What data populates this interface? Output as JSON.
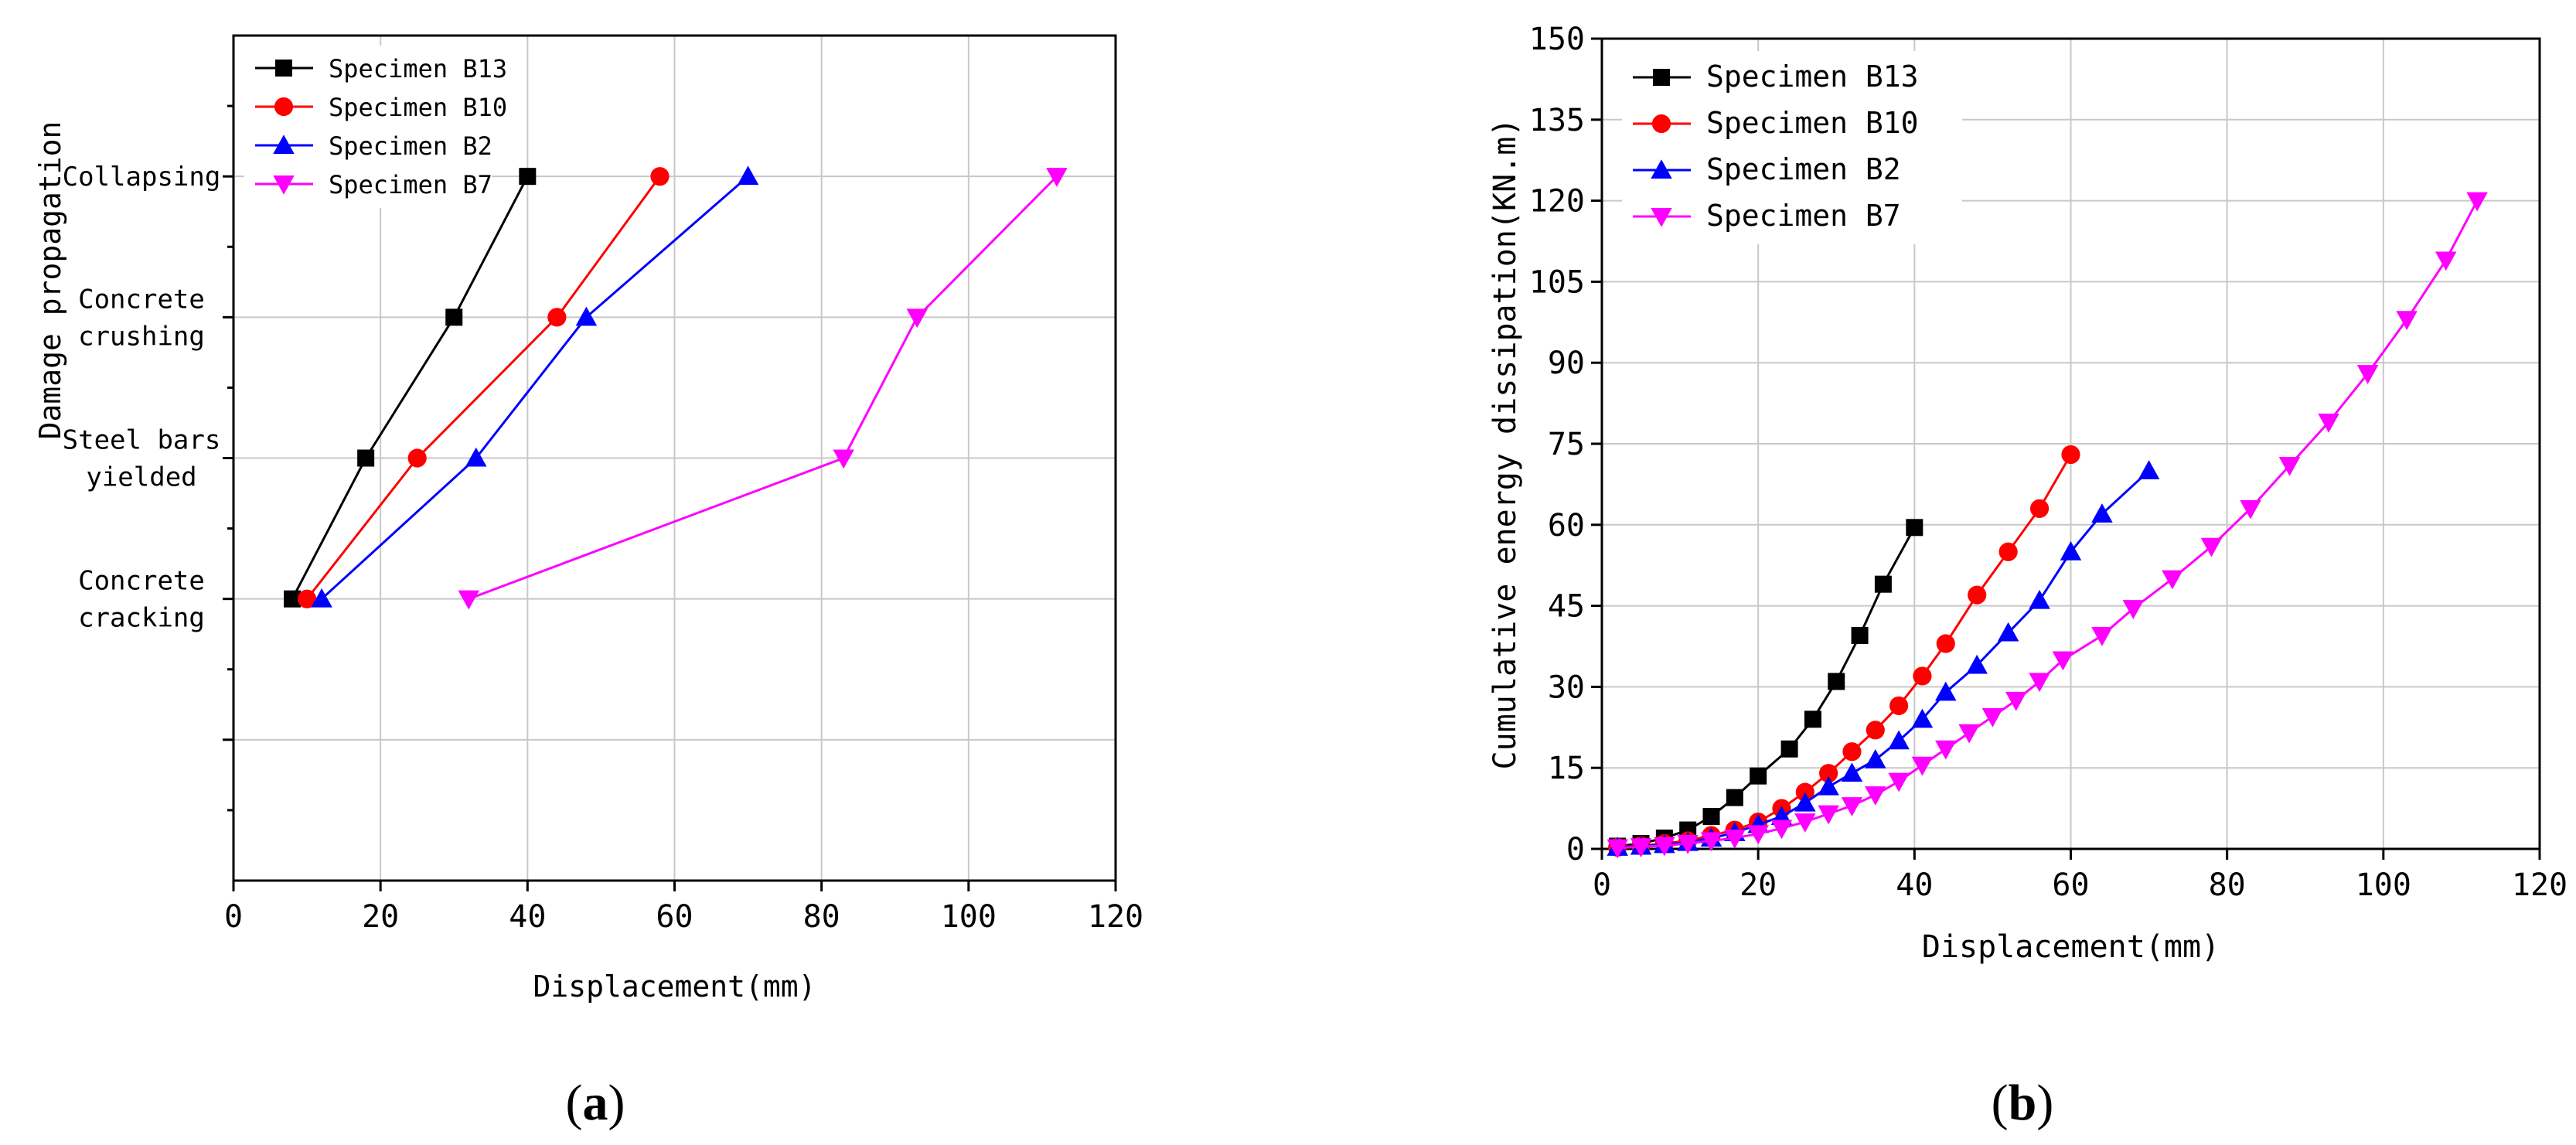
{
  "chart_data": [
    {
      "id": "a",
      "type": "line",
      "panel_label": "(a)",
      "panel_letter": "a",
      "title": "",
      "xlabel": "Displacement(mm)",
      "ylabel": "Damage propagation",
      "xlim": [
        0,
        120
      ],
      "xticks": [
        0,
        20,
        40,
        60,
        80,
        100,
        120
      ],
      "ylim": [
        0,
        6
      ],
      "yticks_major": [
        1,
        2,
        3,
        4,
        5
      ],
      "yticks_minor": [
        0.5,
        1.5,
        2.5,
        3.5,
        4.5,
        5.5
      ],
      "categories": [
        {
          "y": 2,
          "lines": [
            "Concrete",
            "cracking"
          ]
        },
        {
          "y": 3,
          "lines": [
            "Steel bars",
            "yielded"
          ]
        },
        {
          "y": 4,
          "lines": [
            "Concrete",
            "crushing"
          ]
        },
        {
          "y": 5,
          "lines": [
            "Collapsing"
          ]
        }
      ],
      "grid": true,
      "legend_position": "top-left",
      "series": [
        {
          "name": "Specimen B13",
          "color": "#000000",
          "marker": "square",
          "x": [
            8,
            18,
            30,
            40
          ],
          "y": [
            2,
            3,
            4,
            5
          ]
        },
        {
          "name": "Specimen B10",
          "color": "#ff0000",
          "marker": "circle",
          "x": [
            10,
            25,
            44,
            58
          ],
          "y": [
            2,
            3,
            4,
            5
          ]
        },
        {
          "name": "Specimen B2",
          "color": "#0000ff",
          "marker": "triangle-up",
          "x": [
            12,
            33,
            48,
            70
          ],
          "y": [
            2,
            3,
            4,
            5
          ]
        },
        {
          "name": "Specimen B7",
          "color": "#ff00ff",
          "marker": "triangle-down",
          "x": [
            32,
            83,
            93,
            112
          ],
          "y": [
            2,
            3,
            4,
            5
          ]
        }
      ]
    },
    {
      "id": "b",
      "type": "line",
      "panel_label": "(b)",
      "panel_letter": "b",
      "title": "",
      "xlabel": "Displacement(mm)",
      "ylabel": "Cumulative energy dissipation(KN.m)",
      "xlim": [
        0,
        120
      ],
      "xticks": [
        0,
        20,
        40,
        60,
        80,
        100,
        120
      ],
      "ylim": [
        0,
        150
      ],
      "yticks": [
        0,
        15,
        30,
        45,
        60,
        75,
        90,
        105,
        120,
        135,
        150
      ],
      "grid": true,
      "legend_position": "top-left",
      "series": [
        {
          "name": "Specimen B13",
          "color": "#000000",
          "marker": "square",
          "x": [
            2,
            5,
            8,
            11,
            14,
            17,
            20,
            24,
            27,
            30,
            33,
            36,
            40
          ],
          "y": [
            0.5,
            1,
            2,
            3.5,
            6,
            9.5,
            13.5,
            18.5,
            24,
            31,
            39.5,
            49,
            59.5
          ]
        },
        {
          "name": "Specimen B10",
          "color": "#ff0000",
          "marker": "circle",
          "x": [
            2,
            5,
            8,
            11,
            14,
            17,
            20,
            23,
            26,
            29,
            32,
            35,
            38,
            41,
            44,
            48,
            52,
            56,
            60
          ],
          "y": [
            0.3,
            0.6,
            1,
            1.5,
            2.5,
            3.5,
            5,
            7.5,
            10.5,
            14,
            18,
            22,
            26.5,
            32,
            38,
            47,
            55,
            63,
            73
          ]
        },
        {
          "name": "Specimen B2",
          "color": "#0000ff",
          "marker": "triangle-up",
          "x": [
            2,
            5,
            8,
            11,
            14,
            17,
            20,
            23,
            26,
            29,
            32,
            35,
            38,
            41,
            44,
            48,
            52,
            56,
            60,
            64,
            70
          ],
          "y": [
            0.3,
            0.5,
            0.8,
            1.2,
            2,
            3,
            4.5,
            6,
            8.5,
            11.5,
            14,
            16.5,
            20,
            24,
            29,
            34,
            40,
            46,
            55,
            62,
            70
          ]
        },
        {
          "name": "Specimen B7",
          "color": "#ff00ff",
          "marker": "triangle-down",
          "x": [
            2,
            5,
            8,
            11,
            14,
            17,
            20,
            23,
            26,
            29,
            32,
            35,
            38,
            41,
            44,
            47,
            50,
            53,
            56,
            59,
            64,
            68,
            73,
            78,
            83,
            88,
            93,
            98,
            103,
            108,
            112
          ],
          "y": [
            0.2,
            0.4,
            0.6,
            1,
            1.5,
            2,
            2.8,
            3.8,
            5,
            6.5,
            8,
            10,
            12.5,
            15.5,
            18.5,
            21.5,
            24.5,
            27.5,
            31,
            35,
            39.5,
            44.5,
            50,
            56,
            63,
            71,
            79,
            88,
            98,
            109,
            120
          ]
        }
      ]
    }
  ]
}
